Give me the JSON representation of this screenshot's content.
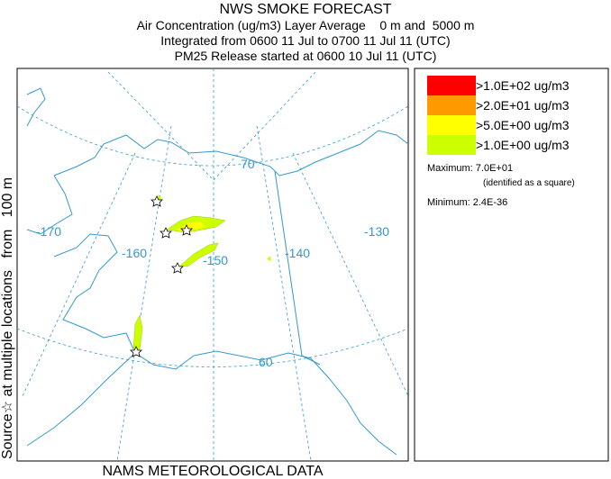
{
  "header": {
    "title": "NWS SMOKE FORECAST",
    "lines": [
      "Air Concentration (ug/m3) Layer Average    0 m and  5000 m",
      "Integrated from 0600 11 Jul to 0700 11 Jul 11 (UTC)",
      "PM25 Release started at 0600 10 Jul 11 (UTC)"
    ]
  },
  "side_label": "Source☆ at multiple locations   from   100 m",
  "map": {
    "longitude_labels": [
      "-170",
      "-160",
      "-150",
      "-140",
      "-130"
    ],
    "latitude_labels": [
      "70",
      "60"
    ]
  },
  "legend": {
    "levels": [
      {
        "label": ">1.0E+02 ug/m3",
        "color": "#ff0000"
      },
      {
        "label": ">2.0E+01 ug/m3",
        "color": "#ff9900"
      },
      {
        "label": ">5.0E+00 ug/m3",
        "color": "#ffff00"
      },
      {
        "label": ">1.0E+00 ug/m3",
        "color": "#ccff00"
      }
    ],
    "maximum": "Maximum: 7.0E+01",
    "maximum_note": "(identified as a square)",
    "minimum": "Minimum: 2.4E-36"
  },
  "footer": "NAMS METEOROLOGICAL DATA"
}
